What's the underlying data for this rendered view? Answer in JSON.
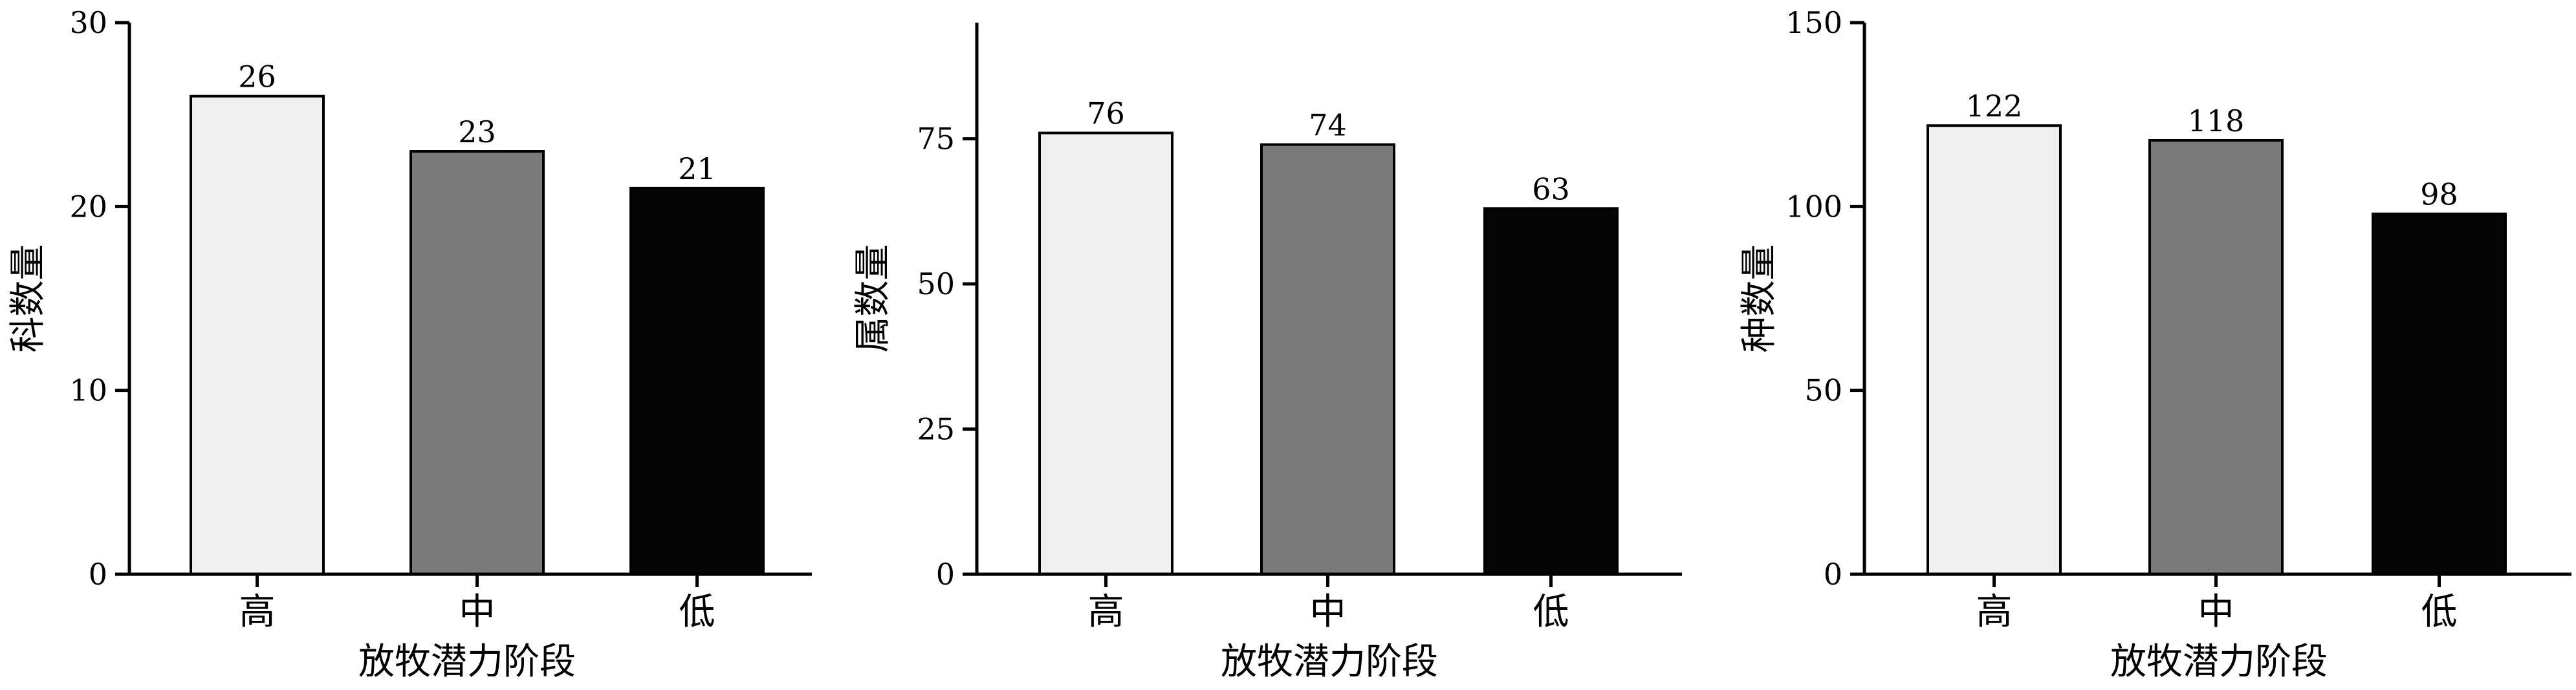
{
  "figure": {
    "xlabel": "放牧潜力阶段"
  },
  "chart_data": [
    {
      "type": "bar",
      "categories": [
        "高",
        "中",
        "低"
      ],
      "values": [
        26,
        23,
        21
      ],
      "ylabel": "科数量",
      "ylim": [
        0,
        30
      ],
      "yticks": [
        0,
        10,
        20,
        30
      ],
      "xlabel": "放牧潜力阶段",
      "bar_colors": [
        "#f0f0f0",
        "#7a7a7a",
        "#050505"
      ],
      "grid": false
    },
    {
      "type": "bar",
      "categories": [
        "高",
        "中",
        "低"
      ],
      "values": [
        76,
        74,
        63
      ],
      "ylabel": "属数量",
      "ylim": [
        0,
        95
      ],
      "yticks": [
        0,
        25,
        50,
        75
      ],
      "xlabel": "放牧潜力阶段",
      "bar_colors": [
        "#f0f0f0",
        "#7a7a7a",
        "#050505"
      ],
      "grid": false
    },
    {
      "type": "bar",
      "categories": [
        "高",
        "中",
        "低"
      ],
      "values": [
        122,
        118,
        98
      ],
      "ylabel": "种数量",
      "ylim": [
        0,
        150
      ],
      "yticks": [
        0,
        50,
        100,
        150
      ],
      "xlabel": "放牧潜力阶段",
      "bar_colors": [
        "#f0f0f0",
        "#7a7a7a",
        "#050505"
      ],
      "grid": false
    }
  ]
}
